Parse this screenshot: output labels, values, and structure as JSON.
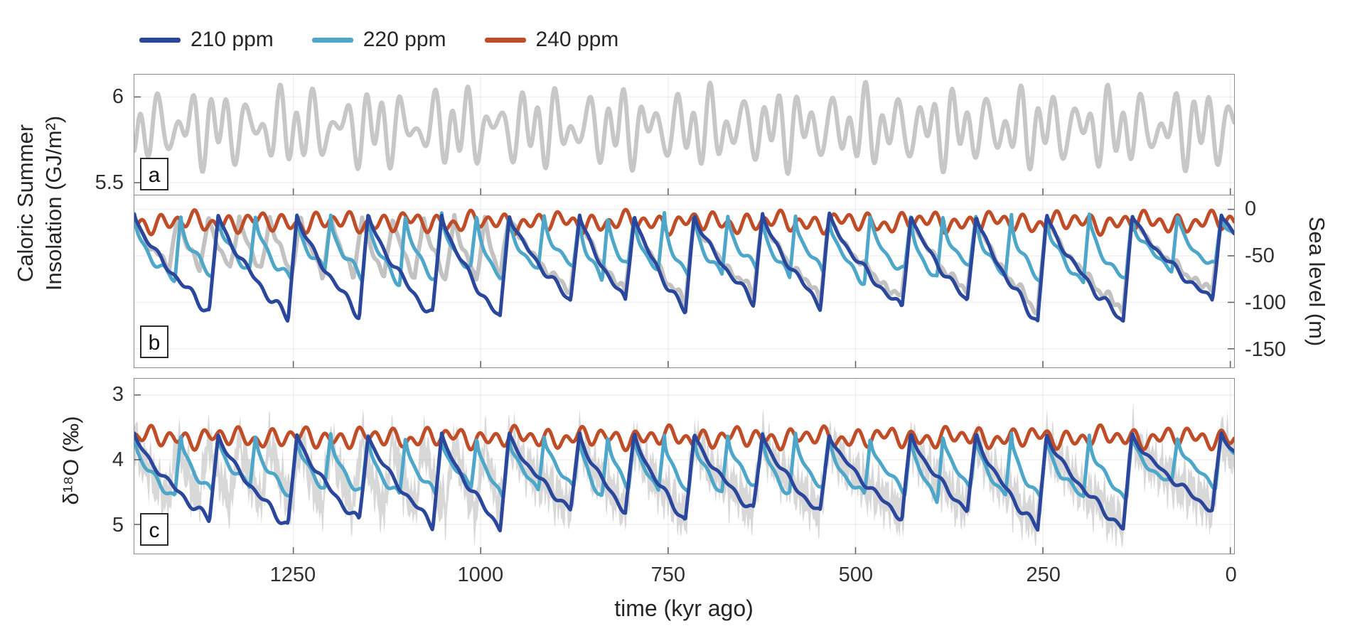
{
  "figure": {
    "xlabel": "time (kyr ago)",
    "x_ticks": [
      {
        "value": 1250,
        "label": "1250"
      },
      {
        "value": 1000,
        "label": "1000"
      },
      {
        "value": 750,
        "label": "750"
      },
      {
        "value": 500,
        "label": "500"
      },
      {
        "value": 250,
        "label": "250"
      },
      {
        "value": 0,
        "label": "0"
      }
    ],
    "x_range": [
      1462,
      -5
    ],
    "legend": [
      {
        "label": "210 ppm",
        "color": "#2b479c"
      },
      {
        "label": "220 ppm",
        "color": "#4ea6c8"
      },
      {
        "label": "240 ppm",
        "color": "#bf4d28"
      }
    ],
    "colors": {
      "co2_210": "#2b479c",
      "co2_220": "#4ea6c8",
      "co2_240": "#bf4d28",
      "data_gray": "#c2c2c2"
    }
  },
  "chart_data": [
    {
      "id": "a",
      "panel_label": "a",
      "type": "line",
      "ylabel": "Caloric Summer Insolation (GJ/m²)",
      "ylabel_lines": [
        "Caloric Summer",
        "Insolation  (GJ/m²)"
      ],
      "y_ticks": [
        {
          "value": 6,
          "label": "6"
        },
        {
          "value": 5.5,
          "label": "5.5"
        }
      ],
      "ylim": [
        5.43,
        6.13
      ],
      "inverted": false,
      "grid": true,
      "series": [
        {
          "name": "caloric summer insolation",
          "color": "#c7c7c7",
          "width": 6,
          "model": "harmonics",
          "mean": 5.82,
          "components": [
            {
              "period": 23,
              "amp": 0.13,
              "phase": 0.6
            },
            {
              "period": 41,
              "amp": 0.09,
              "phase": 2.2
            },
            {
              "period": 19,
              "amp": 0.05,
              "phase": 4.1
            }
          ]
        }
      ]
    },
    {
      "id": "b",
      "panel_label": "b",
      "type": "line",
      "ylabel": "Sea level (m)",
      "ylabel_side": "right",
      "y_ticks": [
        {
          "value": 0,
          "label": "0"
        },
        {
          "value": -50,
          "label": "-50"
        },
        {
          "value": -100,
          "label": "-100"
        },
        {
          "value": -150,
          "label": "-150"
        }
      ],
      "ylim": [
        -170,
        15
      ],
      "inverted": false,
      "grid": true,
      "series": [
        {
          "name": "sea level reconstruction",
          "color": "#c2c2c2",
          "width": 6,
          "model": "glacial",
          "events": [
            1462,
            1404,
            1363,
            1322,
            1281,
            1240,
            1199,
            1158,
            1117,
            1076,
            1035,
            994,
            962,
            868,
            795,
            715,
            624,
            535,
            426,
            339,
            245,
            131,
            12
          ],
          "exp": 0.7,
          "term": 12,
          "base": -6,
          "amp": -100,
          "era": {
            "t": 950,
            "factor": 0.68
          },
          "wiggle": {
            "amp": 9,
            "periods": [
              23,
              41,
              13
            ],
            "phase": 0.9
          }
        },
        {
          "name": "240 ppm",
          "color": "#bf4d28",
          "width": 5,
          "model": "harmonics",
          "mean": -14,
          "components": [
            {
              "period": 23,
              "amp": 7,
              "phase": 1.2
            },
            {
              "period": 41,
              "amp": 4,
              "phase": 3.4
            },
            {
              "period": 98,
              "amp": 3,
              "phase": 0.3
            }
          ]
        },
        {
          "name": "220 ppm",
          "color": "#4ea6c8",
          "width": 5,
          "model": "glacial",
          "events": [
            1462,
            1400,
            1350,
            1300,
            1245,
            1200,
            1150,
            1100,
            1052,
            1005,
            962,
            915,
            868,
            830,
            795,
            755,
            715,
            670,
            624,
            580,
            535,
            480,
            426,
            383,
            339,
            292,
            245,
            188,
            131,
            70,
            12
          ],
          "exp": 0.5,
          "term": 8,
          "base": -5,
          "amp": -70,
          "wiggle": {
            "amp": 7,
            "periods": [
              23,
              41
            ],
            "phase": 2.3
          }
        },
        {
          "name": "210 ppm",
          "color": "#2b479c",
          "width": 5,
          "model": "glacial",
          "events": [
            1462,
            1350,
            1245,
            1150,
            1052,
            962,
            868,
            795,
            715,
            624,
            535,
            426,
            339,
            245,
            131,
            12
          ],
          "exp": 0.75,
          "term": 12,
          "base": -5,
          "amp": -112,
          "wiggle": {
            "amp": 7,
            "periods": [
              23,
              41
            ],
            "phase": 0.2
          }
        }
      ]
    },
    {
      "id": "c",
      "panel_label": "c",
      "type": "line",
      "ylabel": "δ¹⁸O (‰)",
      "y_ticks": [
        {
          "value": 3,
          "label": "3"
        },
        {
          "value": 4,
          "label": "4"
        },
        {
          "value": 5,
          "label": "5"
        }
      ],
      "ylim": [
        2.75,
        5.45
      ],
      "inverted": true,
      "grid": true,
      "series": [
        {
          "name": "benthic d18O stack",
          "color": "rgba(184,184,184,0.55)",
          "width": 0,
          "model": "glacial_band",
          "events": [
            1462,
            1404,
            1363,
            1322,
            1281,
            1240,
            1199,
            1158,
            1117,
            1076,
            1035,
            994,
            962,
            868,
            795,
            715,
            624,
            535,
            426,
            339,
            245,
            131,
            12
          ],
          "exp": 0.7,
          "term": 12,
          "base": 3.68,
          "amp": 1.25,
          "era": {
            "t": 950,
            "factor": 0.85
          },
          "wiggle": {
            "amp": 0.1,
            "periods": [
              23,
              41,
              13
            ],
            "phase": 1.4
          },
          "band": {
            "half": 0.2,
            "half_var": 0.18,
            "spike": 0.28,
            "spike_periods": [
              6.3,
              9.7,
              4.3
            ]
          }
        },
        {
          "name": "240 ppm",
          "color": "#bf4d28",
          "width": 5,
          "model": "harmonics",
          "mean": 3.66,
          "components": [
            {
              "period": 23,
              "amp": 0.1,
              "phase": 1.2
            },
            {
              "period": 41,
              "amp": 0.06,
              "phase": 3.4
            },
            {
              "period": 98,
              "amp": 0.04,
              "phase": 0.3
            }
          ]
        },
        {
          "name": "220 ppm",
          "color": "#4ea6c8",
          "width": 5,
          "model": "glacial",
          "events": [
            1462,
            1400,
            1350,
            1300,
            1245,
            1200,
            1150,
            1100,
            1052,
            1005,
            962,
            915,
            868,
            830,
            795,
            755,
            715,
            670,
            624,
            580,
            535,
            480,
            426,
            383,
            339,
            292,
            245,
            188,
            131,
            70,
            12
          ],
          "exp": 0.5,
          "term": 8,
          "base": 3.6,
          "amp": 0.95,
          "wiggle": {
            "amp": 0.09,
            "periods": [
              23,
              41
            ],
            "phase": 2.3
          }
        },
        {
          "name": "210 ppm",
          "color": "#2b479c",
          "width": 5,
          "model": "glacial",
          "events": [
            1462,
            1350,
            1245,
            1150,
            1052,
            962,
            868,
            795,
            715,
            624,
            535,
            426,
            339,
            245,
            131,
            12
          ],
          "exp": 0.75,
          "term": 12,
          "base": 3.6,
          "amp": 1.42,
          "wiggle": {
            "amp": 0.09,
            "periods": [
              23,
              41
            ],
            "phase": 0.2
          }
        }
      ]
    }
  ]
}
